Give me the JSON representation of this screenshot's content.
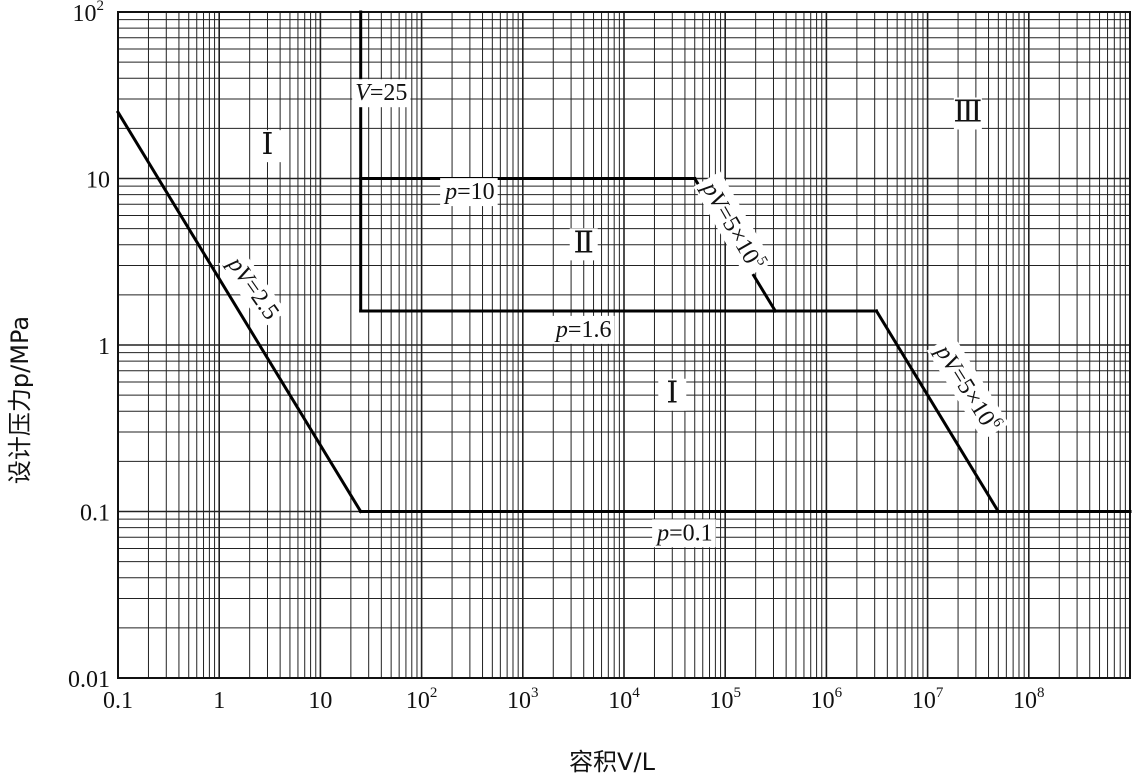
{
  "chart_data": {
    "type": "line",
    "xlabel": "容积V/L",
    "ylabel": "设计压力p/MPa",
    "xscale": "log",
    "yscale": "log",
    "xlim": [
      0.1,
      1000000000
    ],
    "ylim": [
      0.01,
      100
    ],
    "grid": true,
    "x_ticks": [
      {
        "value": 0.1,
        "base": "0.1",
        "exp": ""
      },
      {
        "value": 1,
        "base": "1",
        "exp": ""
      },
      {
        "value": 10,
        "base": "10",
        "exp": ""
      },
      {
        "value": 100,
        "base": "10",
        "exp": "2"
      },
      {
        "value": 1000,
        "base": "10",
        "exp": "3"
      },
      {
        "value": 10000,
        "base": "10",
        "exp": "4"
      },
      {
        "value": 100000,
        "base": "10",
        "exp": "5"
      },
      {
        "value": 1000000,
        "base": "10",
        "exp": "6"
      },
      {
        "value": 10000000,
        "base": "10",
        "exp": "7"
      },
      {
        "value": 100000000,
        "base": "10",
        "exp": "8"
      }
    ],
    "y_ticks": [
      {
        "value": 0.01,
        "base": "0.01",
        "exp": ""
      },
      {
        "value": 0.1,
        "base": "0.1",
        "exp": ""
      },
      {
        "value": 1,
        "base": "1",
        "exp": ""
      },
      {
        "value": 10,
        "base": "10",
        "exp": ""
      },
      {
        "value": 100,
        "base": "10",
        "exp": "2"
      }
    ],
    "boundaries": [
      {
        "label": "pV=2.5",
        "points": [
          [
            0.1,
            25
          ],
          [
            25,
            0.1
          ]
        ]
      },
      {
        "label": "p=0.1",
        "points": [
          [
            25,
            0.1
          ],
          [
            1000000000,
            0.1
          ]
        ]
      },
      {
        "label": "V=25",
        "points": [
          [
            25,
            100
          ],
          [
            25,
            1.6
          ]
        ]
      },
      {
        "label": "p=1.6",
        "points": [
          [
            25,
            1.6
          ],
          [
            3125000,
            1.6
          ]
        ]
      },
      {
        "label": "p=10",
        "points": [
          [
            25,
            10
          ],
          [
            50000,
            10
          ]
        ]
      },
      {
        "label": "pV=5×10^5",
        "points": [
          [
            50000,
            10
          ],
          [
            312500,
            1.6
          ]
        ]
      },
      {
        "label": "pV=5×10^6",
        "points": [
          [
            3125000,
            1.6
          ],
          [
            50000000,
            0.1
          ]
        ]
      }
    ],
    "regions": [
      {
        "label": "Ⅰ",
        "x": 3,
        "y": 14
      },
      {
        "label": "Ⅱ",
        "x": 4000,
        "y": 3.6
      },
      {
        "label": "Ⅰ",
        "x": 30000,
        "y": 0.45
      },
      {
        "label": "Ⅲ",
        "x": 25000000,
        "y": 22
      }
    ],
    "annotations": [
      {
        "pre": "V",
        "text": "=25",
        "sup": "",
        "x": 40,
        "y": 33,
        "angle": 0
      },
      {
        "pre": "p",
        "text": "=10",
        "sup": "",
        "x": 300,
        "y": 8.4,
        "angle": 0
      },
      {
        "pre": "p",
        "text": "=1.6",
        "sup": "",
        "x": 4000,
        "y": 1.25,
        "angle": 0
      },
      {
        "pre": "p",
        "text": "=0.1",
        "sup": "",
        "x": 40000,
        "y": 0.075,
        "angle": 0
      },
      {
        "pre": "pV",
        "text": "=2.5",
        "sup": "",
        "x": 2.2,
        "y": 2.2,
        "angle": 55
      },
      {
        "pre": "pV",
        "text": "=5×10",
        "sup": "5",
        "x": 120000,
        "y": 5.2,
        "angle": 60
      },
      {
        "pre": "pV",
        "text": "=5×10",
        "sup": "6",
        "x": 25000000,
        "y": 0.55,
        "angle": 58
      }
    ]
  }
}
